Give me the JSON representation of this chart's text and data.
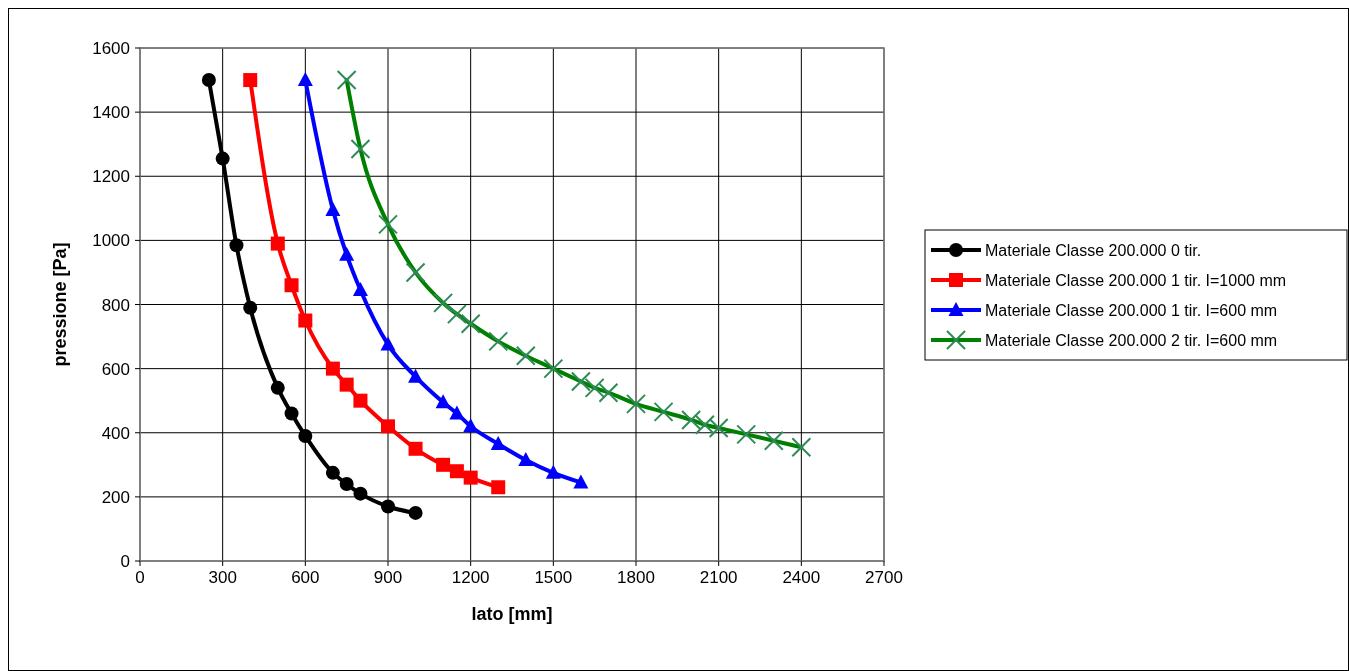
{
  "chart_data": {
    "type": "line",
    "xlabel": "lato [mm]",
    "ylabel": "pressione [Pa]",
    "xlim": [
      0,
      2700
    ],
    "xticks": [
      0,
      300,
      600,
      900,
      1200,
      1500,
      1800,
      2100,
      2400,
      2700
    ],
    "ylim": [
      0,
      1600
    ],
    "yticks": [
      0,
      200,
      400,
      600,
      800,
      1000,
      1200,
      1400,
      1600
    ],
    "grid": true,
    "legend": "right",
    "line_style": "solid",
    "series": [
      {
        "name": "Materiale Classe 200.000 0 tir.",
        "color": "#000000",
        "marker": "circle",
        "x": [
          250,
          300,
          350,
          400,
          500,
          550,
          600,
          700,
          750,
          800,
          900,
          1000
        ],
        "values": [
          1500,
          1255,
          985,
          790,
          540,
          460,
          390,
          275,
          240,
          210,
          170,
          150
        ]
      },
      {
        "name": "Materiale Classe 200.000 1 tir. I=1000 mm",
        "color": "#ff0000",
        "marker": "square",
        "x": [
          400,
          500,
          550,
          600,
          700,
          750,
          800,
          900,
          1000,
          1100,
          1150,
          1200,
          1300
        ],
        "values": [
          1500,
          990,
          860,
          750,
          600,
          550,
          500,
          420,
          350,
          300,
          280,
          260,
          230
        ]
      },
      {
        "name": "Materiale Classe 200.000 1 tir. I=600 mm",
        "color": "#0000ff",
        "marker": "triangle",
        "x": [
          600,
          700,
          750,
          800,
          900,
          1000,
          1100,
          1150,
          1200,
          1300,
          1400,
          1500,
          1600
        ],
        "values": [
          1500,
          1095,
          955,
          845,
          675,
          575,
          495,
          460,
          420,
          365,
          315,
          275,
          245
        ]
      },
      {
        "name": "Materiale Classe 200.000 2 tir. I=600 mm",
        "color": "#008000",
        "marker": "cross",
        "x": [
          750,
          800,
          900,
          1000,
          1100,
          1150,
          1200,
          1300,
          1400,
          1500,
          1600,
          1650,
          1700,
          1800,
          1900,
          2000,
          2050,
          2100,
          2200,
          2300,
          2400
        ],
        "values": [
          1500,
          1285,
          1050,
          900,
          805,
          770,
          740,
          685,
          640,
          600,
          560,
          540,
          525,
          490,
          465,
          440,
          425,
          415,
          395,
          375,
          355
        ]
      }
    ]
  }
}
